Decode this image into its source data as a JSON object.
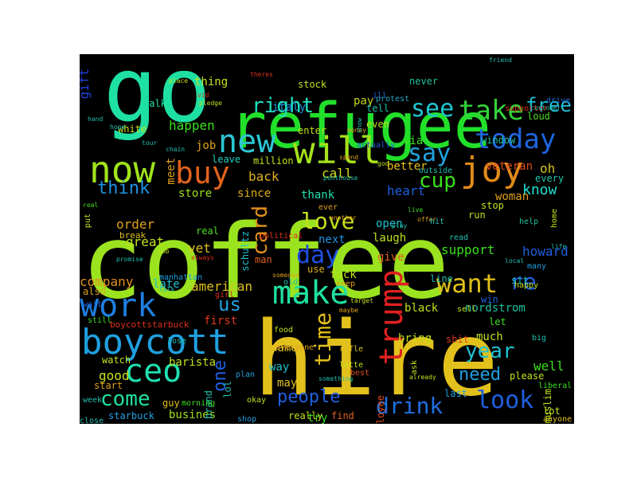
{
  "wordcloud": {
    "background": "#000000",
    "words": [
      {
        "text": "coffee",
        "color": "#9be31f"
      },
      {
        "text": "hire",
        "color": "#e3c11c"
      },
      {
        "text": "go",
        "color": "#1fe0a3"
      },
      {
        "text": "refugee",
        "color": "#22e02a"
      },
      {
        "text": "will",
        "color": "#a5e11c"
      },
      {
        "text": "new",
        "color": "#2cc6d6"
      },
      {
        "text": "now",
        "color": "#a1e31c"
      },
      {
        "text": "buy",
        "color": "#e0621c"
      },
      {
        "text": "joy",
        "color": "#e08a1a"
      },
      {
        "text": "say",
        "color": "#1fa4e0"
      },
      {
        "text": "take",
        "color": "#33d43a"
      },
      {
        "text": "see",
        "color": "#1fc6cf"
      },
      {
        "text": "right",
        "color": "#1fe0c0"
      },
      {
        "text": "free",
        "color": "#1fc0d6"
      },
      {
        "text": "pay",
        "color": "#c3d81e"
      },
      {
        "text": "protest",
        "color": "#1fa8c0"
      },
      {
        "text": "drive",
        "color": "#1f6fe0"
      },
      {
        "text": "loud",
        "color": "#4de01f"
      },
      {
        "text": "today",
        "color": "#1f66e0"
      },
      {
        "text": "oh",
        "color": "#d8c41c"
      },
      {
        "text": "veteran",
        "color": "#e04c1c"
      },
      {
        "text": "every",
        "color": "#1fc6b0"
      },
      {
        "text": "know",
        "color": "#1fe0d0"
      },
      {
        "text": "woman",
        "color": "#e0a01c"
      },
      {
        "text": "help",
        "color": "#1fc0a0"
      },
      {
        "text": "howard",
        "color": "#1f5fe0"
      },
      {
        "text": "gift",
        "color": "#1f40e0"
      },
      {
        "text": "thing",
        "color": "#c8e01c"
      },
      {
        "text": "happen",
        "color": "#3be01f"
      },
      {
        "text": "white",
        "color": "#c8e01c"
      },
      {
        "text": "walk",
        "color": "#1fe0a0"
      },
      {
        "text": "job",
        "color": "#e0a01c"
      },
      {
        "text": "leave",
        "color": "#1fd0c0"
      },
      {
        "text": "million",
        "color": "#c0e01c"
      },
      {
        "text": "back",
        "color": "#e0b01c"
      },
      {
        "text": "call",
        "color": "#d0e01c"
      },
      {
        "text": "cup",
        "color": "#3be01f"
      },
      {
        "text": "heart",
        "color": "#1f60e0"
      },
      {
        "text": "think",
        "color": "#1f90e0"
      },
      {
        "text": "store",
        "color": "#a0e01c"
      },
      {
        "text": "since",
        "color": "#e0b01c"
      },
      {
        "text": "thank",
        "color": "#1fe0b0"
      },
      {
        "text": "card",
        "color": "#e0901c"
      },
      {
        "text": "love",
        "color": "#c8e01c"
      },
      {
        "text": "day",
        "color": "#1f50e0"
      },
      {
        "text": "next",
        "color": "#1f90e0"
      },
      {
        "text": "laugh",
        "color": "#c0e01c"
      },
      {
        "text": "open",
        "color": "#1fc0d0"
      },
      {
        "text": "support",
        "color": "#3be01f"
      },
      {
        "text": "give",
        "color": "#e0601c"
      },
      {
        "text": "order",
        "color": "#e0a01c"
      },
      {
        "text": "great",
        "color": "#c0e01c"
      },
      {
        "text": "vet",
        "color": "#e0c01c"
      },
      {
        "text": "break",
        "color": "#e0c01c"
      },
      {
        "text": "real",
        "color": "#4de01f"
      },
      {
        "text": "company",
        "color": "#e0901c"
      },
      {
        "text": "late",
        "color": "#1fc0d0"
      },
      {
        "text": "american",
        "color": "#e0c01c"
      },
      {
        "text": "make",
        "color": "#1fe0a0"
      },
      {
        "text": "trump",
        "color": "#e02020"
      },
      {
        "text": "want",
        "color": "#e0c01c"
      },
      {
        "text": "re",
        "color": "#1f60e0"
      },
      {
        "text": "nordstrom",
        "color": "#1fc0a0"
      },
      {
        "text": "work",
        "color": "#1f80e0"
      },
      {
        "text": "us",
        "color": "#1fa0e0"
      },
      {
        "text": "boycott",
        "color": "#1fa0e0"
      },
      {
        "text": "ceo",
        "color": "#1fe0b0"
      },
      {
        "text": "one",
        "color": "#1f60e0"
      },
      {
        "text": "time",
        "color": "#e0c01c"
      },
      {
        "text": "people",
        "color": "#1f60e0"
      },
      {
        "text": "drink",
        "color": "#1f70e0"
      },
      {
        "text": "look",
        "color": "#1f60e0"
      },
      {
        "text": "year",
        "color": "#1fc0d0"
      },
      {
        "text": "need",
        "color": "#1fa0e0"
      },
      {
        "text": "well",
        "color": "#3be01f"
      },
      {
        "text": "come",
        "color": "#1fe0a0"
      },
      {
        "text": "good",
        "color": "#c8e01c"
      },
      {
        "text": "barista",
        "color": "#c0e01c"
      },
      {
        "text": "way",
        "color": "#1fc0d0"
      },
      {
        "text": "name",
        "color": "#e0c01c"
      },
      {
        "text": "may",
        "color": "#e0c01c"
      },
      {
        "text": "try",
        "color": "#3be01f"
      },
      {
        "text": "bring",
        "color": "#c0e01c"
      },
      {
        "text": "black",
        "color": "#c0e01c"
      },
      {
        "text": "first",
        "color": "#e03a1c"
      },
      {
        "text": "boycottstarbuck",
        "color": "#e0301c"
      },
      {
        "text": "watch",
        "color": "#c0e01c"
      },
      {
        "text": "start",
        "color": "#e0a01c"
      },
      {
        "text": "guy",
        "color": "#e0c01c"
      },
      {
        "text": "starbuck",
        "color": "#1fa0e0"
      },
      {
        "text": "busines",
        "color": "#a0e01c"
      },
      {
        "text": "really",
        "color": "#c0e01c"
      },
      {
        "text": "find",
        "color": "#e0601c"
      },
      {
        "text": "man",
        "color": "#e0601c"
      },
      {
        "text": "italy",
        "color": "#1f90e0"
      },
      {
        "text": "stock",
        "color": "#c0e01c"
      },
      {
        "text": "never",
        "color": "#1fc0a0"
      },
      {
        "text": "via",
        "color": "#3be01f"
      },
      {
        "text": "better",
        "color": "#e0c01c"
      },
      {
        "text": "even",
        "color": "#c0e01c"
      },
      {
        "text": "tell",
        "color": "#1fc0b0"
      },
      {
        "text": "ill",
        "color": "#1f60e0"
      },
      {
        "text": "enter",
        "color": "#c0e01c"
      },
      {
        "text": "window",
        "color": "#1fc0a0"
      },
      {
        "text": "stop",
        "color": "#c0e01c"
      },
      {
        "text": "run",
        "color": "#c0e01c"
      },
      {
        "text": "much",
        "color": "#c0e01c"
      },
      {
        "text": "let",
        "color": "#3be01f"
      },
      {
        "text": "win",
        "color": "#1f60e0"
      },
      {
        "text": "sit",
        "color": "#1fc0b0"
      },
      {
        "text": "fuck",
        "color": "#c0e01c"
      },
      {
        "text": "use",
        "color": "#e0b01c"
      },
      {
        "text": "line",
        "color": "#1fc0b0"
      },
      {
        "text": "meet",
        "color": "#e0a01c"
      },
      {
        "text": "schultz",
        "color": "#1fc0d0"
      },
      {
        "text": "also",
        "color": "#e0a01c"
      },
      {
        "text": "wait",
        "color": "#1f60e0"
      },
      {
        "text": "still",
        "color": "#3be01f"
      },
      {
        "text": "brand",
        "color": "#1fc0b0"
      },
      {
        "text": "plan",
        "color": "#1fa0e0"
      },
      {
        "text": "lol",
        "color": "#1fc0b0"
      },
      {
        "text": "morning",
        "color": "#3be01f"
      },
      {
        "text": "okay",
        "color": "#c0e01c"
      },
      {
        "text": "shop",
        "color": "#1fa0e0"
      },
      {
        "text": "employee",
        "color": "#e04c1c"
      },
      {
        "text": "last",
        "color": "#1fa0e0"
      },
      {
        "text": "please",
        "color": "#c0e01c"
      },
      {
        "text": "liberal",
        "color": "#3be01f"
      },
      {
        "text": "lot",
        "color": "#c0e01c"
      },
      {
        "text": "anyone",
        "color": "#e0c01c"
      },
      {
        "text": "muslim",
        "color": "#c0e01c"
      },
      {
        "text": "happy",
        "color": "#c0e01c"
      },
      {
        "text": "big",
        "color": "#1fc0b0"
      },
      {
        "text": "shit",
        "color": "#e03a1c"
      },
      {
        "text": "sell",
        "color": "#c0e01c"
      },
      {
        "text": "food",
        "color": "#c0e01c"
      },
      {
        "text": "everyone",
        "color": "#e0a01c"
      },
      {
        "text": "rifle",
        "color": "#e0c01c"
      },
      {
        "text": "latte",
        "color": "#c0e01c"
      },
      {
        "text": "best",
        "color": "#e04c1c"
      },
      {
        "text": "ask",
        "color": "#c0e01c"
      },
      {
        "text": "old",
        "color": "#1fc0b0"
      },
      {
        "text": "keep",
        "color": "#e0a01c"
      },
      {
        "text": "girl",
        "color": "#e0301c"
      },
      {
        "text": "political",
        "color": "#e0301c"
      },
      {
        "text": "someone",
        "color": "#e0a01c"
      },
      {
        "text": "put",
        "color": "#c0e01c"
      },
      {
        "text": "real",
        "color": "#3be01f"
      },
      {
        "text": "manhattan",
        "color": "#1fa0e0"
      },
      {
        "text": "talk",
        "color": "#1fc0b0"
      },
      {
        "text": "week",
        "color": "#1fc0b0"
      },
      {
        "text": "close",
        "color": "#1fc0b0"
      },
      {
        "text": "promise",
        "color": "#1fc0b0"
      },
      {
        "text": "sob",
        "color": "#c0e01c"
      },
      {
        "text": "always",
        "color": "#e0301c"
      },
      {
        "text": "lose",
        "color": "#1fc0b0"
      },
      {
        "text": "ever",
        "color": "#e0a01c"
      },
      {
        "text": "another",
        "color": "#e0a01c"
      },
      {
        "text": "live",
        "color": "#3be01f"
      },
      {
        "text": "play",
        "color": "#1fc0b0"
      },
      {
        "text": "offer",
        "color": "#e0a01c"
      },
      {
        "text": "hit",
        "color": "#1fc0b0"
      },
      {
        "text": "read",
        "color": "#1fc0b0"
      },
      {
        "text": "outside",
        "color": "#1fc0b0"
      },
      {
        "text": "god",
        "color": "#c0e01c"
      },
      {
        "text": "penthouse",
        "color": "#1fc0b0"
      },
      {
        "text": "money",
        "color": "#e0a01c"
      },
      {
        "text": "actually",
        "color": "#1f60e0"
      },
      {
        "text": "spend",
        "color": "#e0a01c"
      },
      {
        "text": "show",
        "color": "#1fc0b0"
      },
      {
        "text": "supporter",
        "color": "#e0301c"
      },
      {
        "text": "customer",
        "color": "#1fc0b0"
      },
      {
        "text": "home",
        "color": "#c0e01c"
      },
      {
        "text": "life",
        "color": "#1fc0b0"
      },
      {
        "text": "many",
        "color": "#1fa0e0"
      },
      {
        "text": "local",
        "color": "#1fc0b0"
      },
      {
        "text": "hope",
        "color": "#1fc0b0"
      },
      {
        "text": "tour",
        "color": "#1fc0b0"
      },
      {
        "text": "hand",
        "color": "#1fc0b0"
      },
      {
        "text": "place",
        "color": "#c0e01c"
      },
      {
        "text": "vid",
        "color": "#e0301c"
      },
      {
        "text": "pledge",
        "color": "#c0e01c"
      },
      {
        "text": "theres",
        "color": "#e0301c"
      },
      {
        "text": "friend",
        "color": "#1fc0b0"
      },
      {
        "text": "chain",
        "color": "#1fc0b0"
      },
      {
        "text": "target",
        "color": "#c0e01c"
      },
      {
        "text": "maybe",
        "color": "#e0a01c"
      },
      {
        "text": "already",
        "color": "#c0e01c"
      },
      {
        "text": "something",
        "color": "#1fc0b0"
      },
      {
        "text": "around",
        "color": "#1fc0b0"
      },
      {
        "text": "hear",
        "color": "#1fc0b0"
      },
      {
        "text": "bad",
        "color": "#1fc0b0"
      },
      {
        "text": "class",
        "color": "#e0a01c"
      },
      {
        "text": "ready",
        "color": "#c0e01c"
      }
    ]
  }
}
